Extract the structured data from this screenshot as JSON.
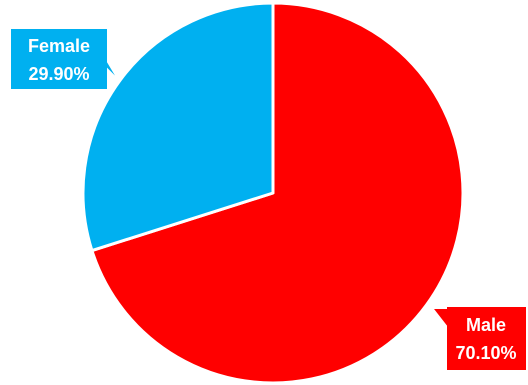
{
  "chart_data": {
    "type": "pie",
    "title": "",
    "slices": [
      {
        "label": "Male",
        "value": 70.1,
        "value_label": "70.10%",
        "color": "#FF0000"
      },
      {
        "label": "Female",
        "value": 29.9,
        "value_label": "29.90%",
        "color": "#00B0F0"
      }
    ],
    "legend": "none",
    "start_angle": "12 o'clock",
    "direction": "clockwise",
    "slice_border_color": "#ffffff"
  }
}
